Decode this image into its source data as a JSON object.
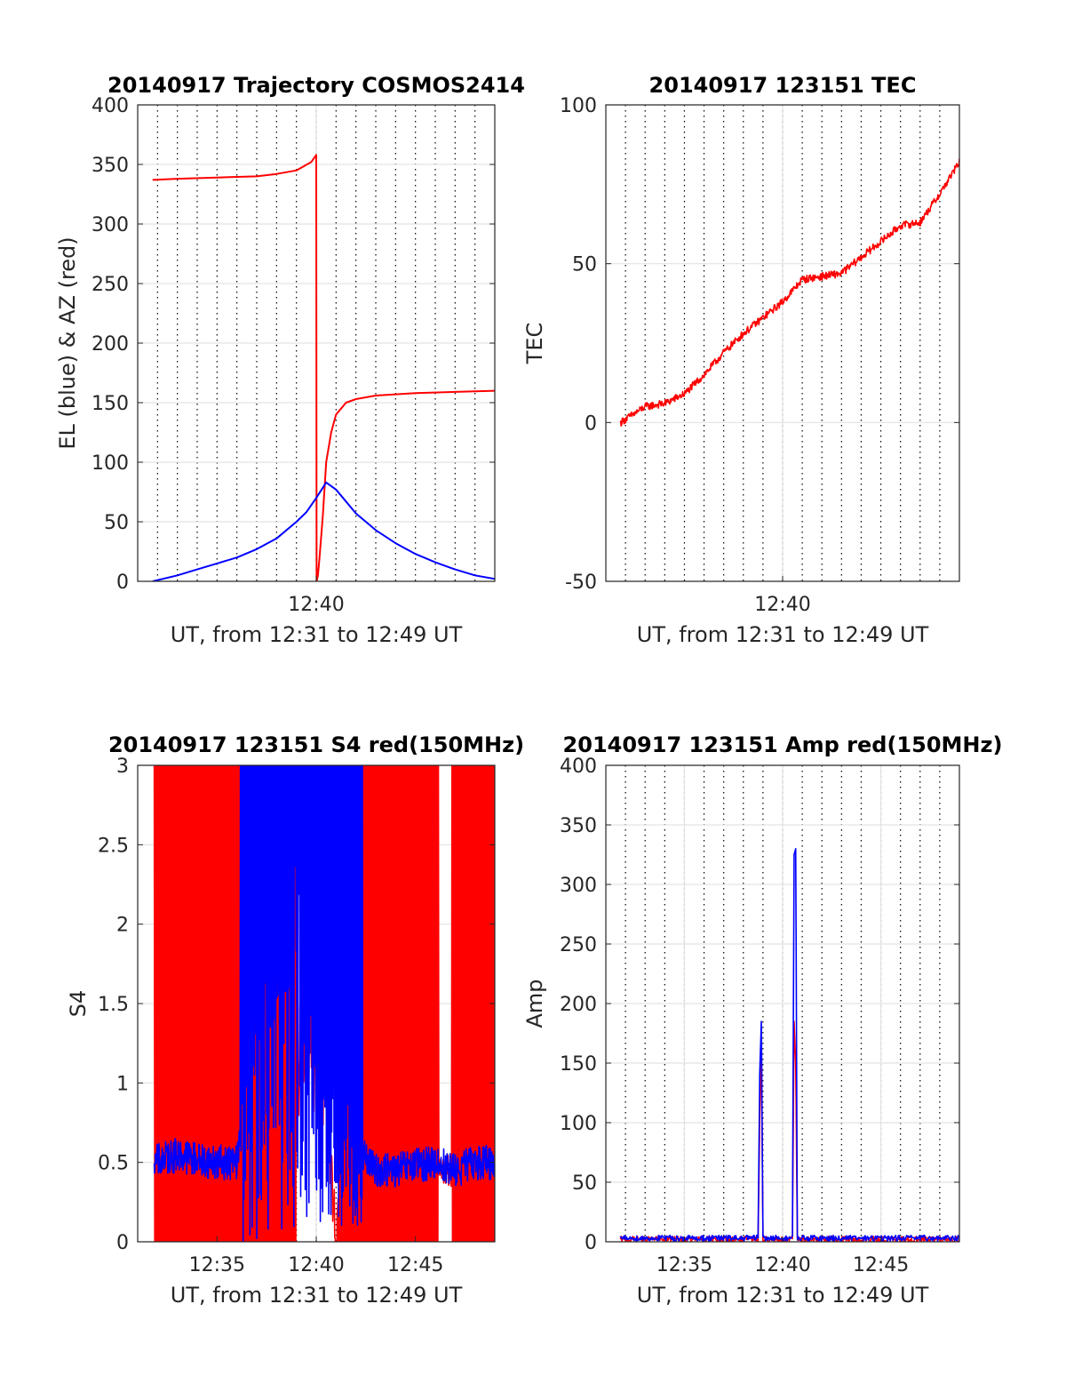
{
  "figure": {
    "subplots": [
      {
        "id": "trajectory",
        "title": "20140917 Trajectory COSMOS2414",
        "xlabel": "UT, from 12:31 to 12:49 UT",
        "ylabel": "EL (blue) & AZ (red)",
        "xticks": [
          "12:40"
        ],
        "yticks": [
          "0",
          "50",
          "100",
          "150",
          "200",
          "250",
          "300",
          "350",
          "400"
        ]
      },
      {
        "id": "tec",
        "title": "20140917 123151 TEC",
        "xlabel": "UT, from 12:31 to 12:49 UT",
        "ylabel": "TEC",
        "xticks": [
          "12:40"
        ],
        "yticks": [
          "-50",
          "0",
          "50",
          "100"
        ]
      },
      {
        "id": "s4",
        "title": "20140917 123151 S4 red(150MHz)",
        "xlabel": "UT, from 12:31 to 12:49 UT",
        "ylabel": "S4",
        "xticks": [
          "12:35",
          "12:40",
          "12:45"
        ],
        "yticks": [
          "0",
          "0.5",
          "1",
          "1.5",
          "2",
          "2.5",
          "3"
        ]
      },
      {
        "id": "amp",
        "title": "20140917 123151 Amp red(150MHz)",
        "xlabel": "UT, from 12:31 to 12:49 UT",
        "ylabel": "Amp",
        "xticks": [
          "12:35",
          "12:40",
          "12:45"
        ],
        "yticks": [
          "0",
          "50",
          "100",
          "150",
          "200",
          "250",
          "300",
          "350",
          "400"
        ]
      }
    ]
  },
  "chart_data": [
    {
      "type": "line",
      "title": "20140917 Trajectory COSMOS2414",
      "xlabel": "UT, from 12:31 to 12:49 UT",
      "ylabel": "EL (blue) & AZ (red)",
      "xlim": [
        "12:31",
        "12:49"
      ],
      "ylim": [
        0,
        400
      ],
      "grid": true,
      "series": [
        {
          "color": "#ff0000",
          "x": [
            "12:31:45",
            "12:33",
            "12:35",
            "12:37",
            "12:38",
            "12:39",
            "12:39:45",
            "12:40:00",
            "12:40:01",
            "12:40:05",
            "12:40:10",
            "12:40:20",
            "12:40:30",
            "12:40:45",
            "12:41",
            "12:41:30",
            "12:42",
            "12:43",
            "12:45",
            "12:47",
            "12:49"
          ],
          "y": [
            337,
            338,
            339,
            340,
            342,
            345,
            352,
            358,
            0,
            5,
            20,
            55,
            100,
            125,
            140,
            150,
            153,
            156,
            158,
            159,
            160
          ]
        },
        {
          "color": "#0000ff",
          "x": [
            "12:31:45",
            "12:33",
            "12:34",
            "12:35",
            "12:36",
            "12:37",
            "12:38",
            "12:39",
            "12:39:30",
            "12:40",
            "12:40:30",
            "12:41",
            "12:41:30",
            "12:42",
            "12:43",
            "12:44",
            "12:45",
            "12:46",
            "12:47",
            "12:48",
            "12:49"
          ],
          "y": [
            0,
            5,
            10,
            15,
            20,
            27,
            36,
            50,
            58,
            70,
            83,
            77,
            67,
            57,
            43,
            32,
            23,
            16,
            10,
            5,
            2
          ]
        }
      ]
    },
    {
      "type": "line",
      "title": "20140917 123151 TEC",
      "xlabel": "UT, from 12:31 to 12:49 UT",
      "ylabel": "TEC",
      "xlim": [
        "12:31",
        "12:49"
      ],
      "ylim": [
        -50,
        100
      ],
      "grid": true,
      "series": [
        {
          "color": "#ff0000",
          "x": [
            "12:31:45",
            "12:33",
            "12:34",
            "12:35",
            "12:36",
            "12:37",
            "12:38",
            "12:39",
            "12:40",
            "12:41",
            "12:42",
            "12:43",
            "12:44",
            "12:45",
            "12:46",
            "12:47",
            "12:48",
            "12:49"
          ],
          "y": [
            0,
            5,
            6,
            9,
            15,
            22,
            28,
            33,
            38,
            45,
            46,
            47,
            52,
            57,
            62,
            63,
            72,
            82
          ]
        }
      ]
    },
    {
      "type": "line",
      "title": "20140917 123151 S4 red(150MHz)",
      "xlabel": "UT, from 12:31 to 12:49 UT",
      "ylabel": "S4",
      "xlim": [
        "12:31",
        "12:49"
      ],
      "ylim": [
        0,
        3
      ],
      "grid": true,
      "series": [
        {
          "color": "#ff0000",
          "note_regions": "dense oscillation between 0 and 3",
          "x": [
            "12:31:50",
            "12:36:10",
            "12:38:30",
            "12:39:00",
            "12:39:30",
            "12:40:00",
            "12:40:30",
            "12:41:00",
            "12:42:20",
            "12:45:00",
            "12:49:00"
          ],
          "y": [
            0.5,
            0.5,
            1.3,
            1.0,
            1.5,
            0.8,
            1.2,
            0.1,
            0.5,
            0.45,
            0.5
          ]
        },
        {
          "color": "#0000ff",
          "x": [
            "12:31:50",
            "12:33",
            "12:34",
            "12:35",
            "12:36",
            "12:37",
            "12:38",
            "12:39",
            "12:40",
            "12:41",
            "12:42",
            "12:43",
            "12:44",
            "12:45",
            "12:46",
            "12:47",
            "12:48",
            "12:49"
          ],
          "y": [
            0.5,
            0.55,
            0.52,
            0.5,
            0.5,
            1.5,
            1.2,
            2.3,
            1.3,
            0.8,
            0.6,
            0.45,
            0.45,
            0.48,
            0.5,
            0.45,
            0.5,
            0.5
          ]
        }
      ]
    },
    {
      "type": "line",
      "title": "20140917 123151 Amp red(150MHz)",
      "xlabel": "UT, from 12:31 to 12:49 UT",
      "ylabel": "Amp",
      "xlim": [
        "12:31",
        "12:49"
      ],
      "ylim": [
        0,
        400
      ],
      "grid": true,
      "series": [
        {
          "color": "#ff0000",
          "x": [
            "12:31:45",
            "12:38:45",
            "12:38:50",
            "12:38:55",
            "12:39:00",
            "12:40:30",
            "12:40:35",
            "12:40:40",
            "12:40:45",
            "12:49"
          ],
          "y": [
            1,
            1,
            100,
            170,
            1,
            1,
            185,
            150,
            1,
            1
          ]
        },
        {
          "color": "#0000ff",
          "x": [
            "12:31:45",
            "12:38:45",
            "12:38:50",
            "12:38:55",
            "12:39:00",
            "12:40:30",
            "12:40:35",
            "12:40:40",
            "12:40:45",
            "12:49"
          ],
          "y": [
            2,
            2,
            140,
            185,
            2,
            2,
            325,
            330,
            2,
            2
          ]
        }
      ]
    }
  ]
}
